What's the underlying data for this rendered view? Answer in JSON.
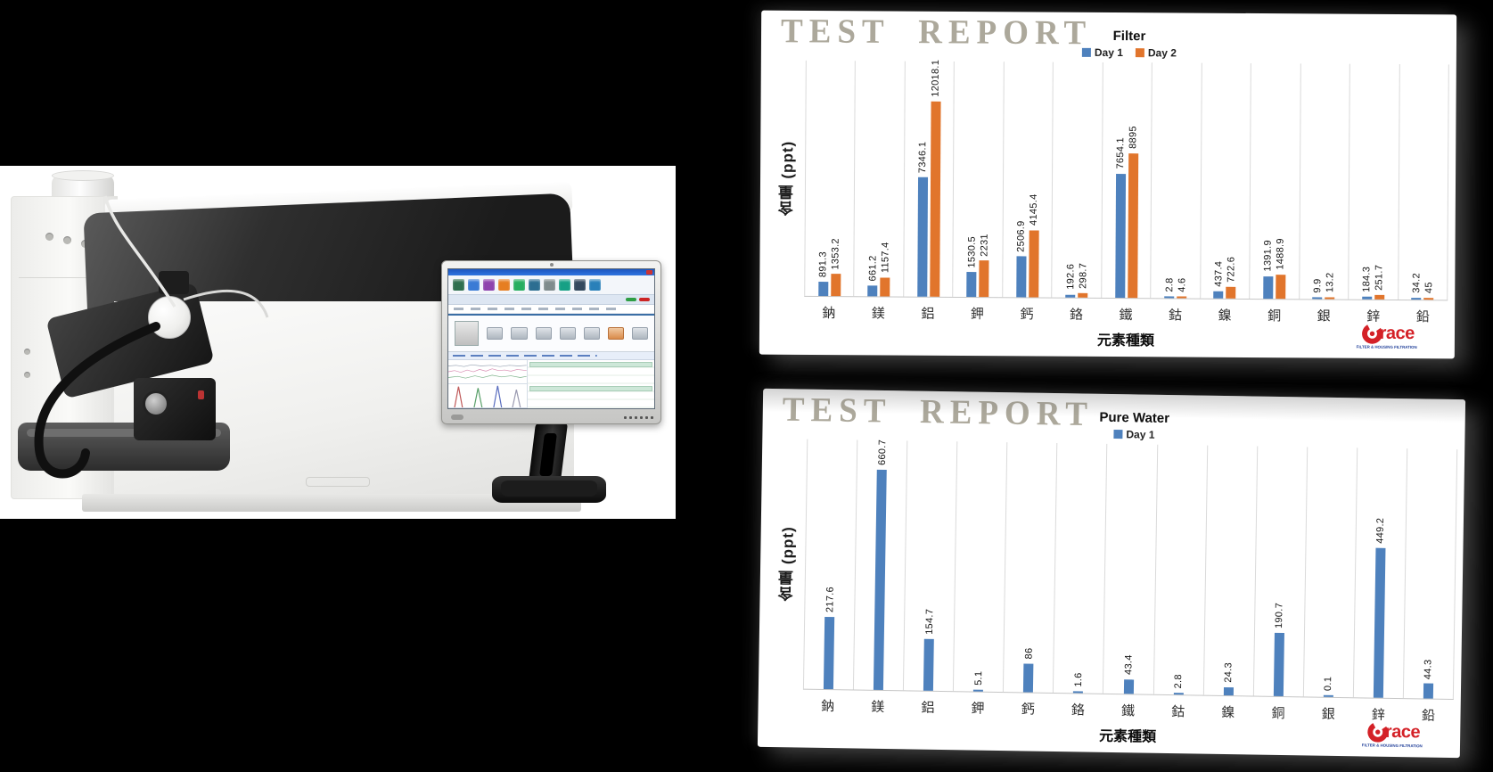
{
  "page": {
    "background": "#000000"
  },
  "panels": [
    {
      "watermark": "TEST REPORT"
    },
    {
      "watermark": "TEST REPORT"
    }
  ],
  "logo": {
    "text": "Grace",
    "tagline": "FILTER & HOUSING FILTRATION",
    "text_color": "#d42127",
    "tagline_color": "#1e3d98"
  },
  "chart_data": [
    {
      "type": "bar",
      "title": "Filter",
      "categories": [
        "鈉",
        "鎂",
        "鋁",
        "鉀",
        "鈣",
        "鉻",
        "鐵",
        "鈷",
        "鎳",
        "銅",
        "銀",
        "鋅",
        "鉛"
      ],
      "series": [
        {
          "name": "Day 1",
          "color": "#4e81bd",
          "values": [
            891.3,
            661.2,
            7346.1,
            1530.5,
            2506.9,
            192.6,
            7654.1,
            2.8,
            437.4,
            1391.9,
            9.9,
            184.3,
            34.2
          ]
        },
        {
          "name": "Day 2",
          "color": "#e1752c",
          "values": [
            1353.2,
            1157.4,
            12018.1,
            2231,
            4145.4,
            298.7,
            8895,
            4.6,
            722.6,
            1488.9,
            13.2,
            251.7,
            45
          ]
        }
      ],
      "xlabel": "元素種類",
      "ylabel": "含量 (ppt)",
      "ylim": [
        0,
        14500
      ],
      "grid": "vertical-category-lines",
      "legend_position": "top",
      "data_labels": "rotated-90-above-bars"
    },
    {
      "type": "bar",
      "title": "Pure Water",
      "categories": [
        "鈉",
        "鎂",
        "鋁",
        "鉀",
        "鈣",
        "鉻",
        "鐵",
        "鈷",
        "鎳",
        "銅",
        "銀",
        "鋅",
        "鉛"
      ],
      "series": [
        {
          "name": "Day 1",
          "color": "#4e81bd",
          "values": [
            217.6,
            660.7,
            154.7,
            5.1,
            86,
            1.6,
            43.4,
            2.8,
            24.3,
            190.7,
            0.1,
            449.2,
            44.3
          ]
        }
      ],
      "xlabel": "元素種類",
      "ylabel": "含量 (ppt)",
      "ylim": [
        0,
        750
      ],
      "grid": "vertical-category-lines",
      "legend_position": "top",
      "data_labels": "rotated-90-above-bars"
    }
  ]
}
